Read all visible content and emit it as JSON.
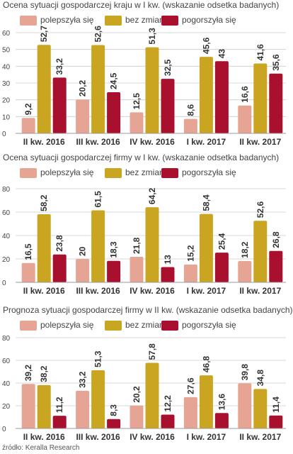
{
  "chart_data": [
    {
      "type": "bar",
      "title": "Ocena sytuacji gospodarczej kraju w I kw. (wskazanie odsetka badanych)",
      "categories": [
        "II kw. 2016",
        "III kw. 2016",
        "IV kw. 2016",
        "I kw. 2017",
        "II kw. 2017"
      ],
      "series": [
        {
          "name": "polepszyła się",
          "values": [
            9.2,
            20.2,
            12.5,
            8.6,
            16.6
          ]
        },
        {
          "name": "bez zmian",
          "values": [
            52.7,
            52.6,
            51.3,
            45.6,
            41.6
          ]
        },
        {
          "name": "pogorszyła się",
          "values": [
            33.2,
            24.5,
            32.5,
            43,
            35.6
          ]
        }
      ],
      "value_labels": [
        [
          "9,2",
          "20,2",
          "12,5",
          "8,6",
          "16,6"
        ],
        [
          "52,7",
          "52,6",
          "51,3",
          "45,6",
          "41,6"
        ],
        [
          "33,2",
          "24,5",
          "32,5",
          "43",
          "35,6"
        ]
      ],
      "ylim": [
        0,
        60
      ],
      "yticks": [
        "0",
        "10",
        "20",
        "30",
        "40",
        "50",
        "60"
      ],
      "grid": true,
      "legend": "top"
    },
    {
      "type": "bar",
      "title": "Ocena sytuacji gospodarczej firmy w I kw. (wskazanie odsetka badanych)",
      "categories": [
        "II kw. 2016",
        "III kw. 2016",
        "IV kw. 2016",
        "I kw. 2017",
        "II kw. 2017"
      ],
      "series": [
        {
          "name": "polepszyła się",
          "values": [
            16.5,
            20,
            21.8,
            15.2,
            18.2
          ]
        },
        {
          "name": "bez zmian",
          "values": [
            58.2,
            61.5,
            64.2,
            58.4,
            52.6
          ]
        },
        {
          "name": "pogorszyła się",
          "values": [
            23.8,
            18.3,
            13,
            25.4,
            26.8
          ]
        }
      ],
      "value_labels": [
        [
          "16,5",
          "20",
          "21,8",
          "15,2",
          "18,2"
        ],
        [
          "58,2",
          "61,5",
          "64,2",
          "58,4",
          "52,6"
        ],
        [
          "23,8",
          "18,3",
          "13",
          "25,4",
          "26,8"
        ]
      ],
      "ylim": [
        0,
        80
      ],
      "yticks": [
        "0",
        "20",
        "40",
        "60",
        "80"
      ],
      "grid": true,
      "legend": "top"
    },
    {
      "type": "bar",
      "title": "Prognoza sytuacji gospodarczej firmy w II kw. (wskazanie odsetka badanych)",
      "categories": [
        "II kw. 2016",
        "III kw. 2016",
        "IV kw. 2016",
        "I kw. 2017",
        "II kw. 2017"
      ],
      "series": [
        {
          "name": "polepszyła się",
          "values": [
            39.2,
            33.2,
            20.2,
            27.6,
            39.8
          ]
        },
        {
          "name": "bez zmian",
          "values": [
            38.2,
            51.3,
            57.8,
            46.8,
            34.8
          ]
        },
        {
          "name": "pogorszyła się",
          "values": [
            11.2,
            8.3,
            12.2,
            13.6,
            11.4
          ]
        }
      ],
      "value_labels": [
        [
          "39,2",
          "33,2",
          "20,2",
          "27,6",
          "39,8"
        ],
        [
          "38,2",
          "51,3",
          "57,8",
          "46,8",
          "34,8"
        ],
        [
          "11,2",
          "8,3",
          "12,2",
          "13,6",
          "11,4"
        ]
      ],
      "ylim": [
        0,
        80
      ],
      "yticks": [
        "0",
        "20",
        "40",
        "60",
        "80"
      ],
      "grid": true,
      "legend": "top"
    }
  ],
  "colors": {
    "polepszyla": "#e6a594",
    "bez_zmian": "#c9a521",
    "pogorszyla": "#a8102e",
    "grid": "#cccccc",
    "text": "#333333"
  },
  "source": "źródło: Keralla Research"
}
